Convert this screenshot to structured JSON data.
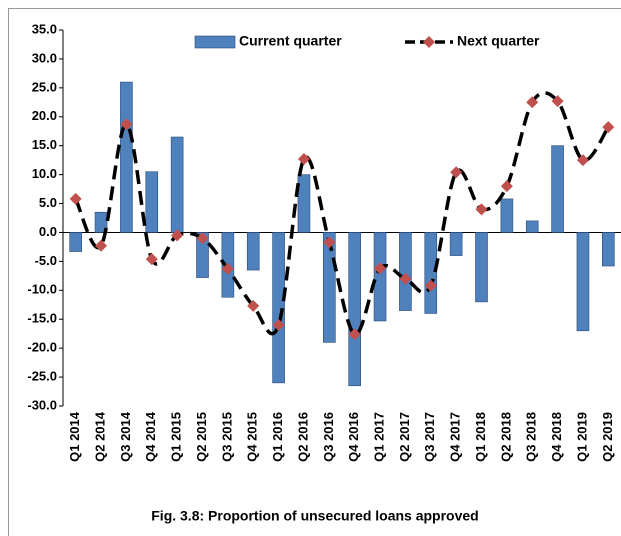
{
  "chart_data": {
    "type": "bar-line",
    "caption": "Fig. 3.8: Proportion of unsecured loans approved",
    "categories": [
      "Q1 2014",
      "Q2 2014",
      "Q3 2014",
      "Q4 2014",
      "Q1 2015",
      "Q2 2015",
      "Q3 2015",
      "Q4 2015",
      "Q1 2016",
      "Q2 2016",
      "Q3 2016",
      "Q4 2016",
      "Q1 2017",
      "Q2 2017",
      "Q3 2017",
      "Q4 2017",
      "Q1 2018",
      "Q2 2018",
      "Q3 2018",
      "Q4 2018",
      "Q1 2019",
      "Q2 2019"
    ],
    "series": [
      {
        "name": "Current quarter",
        "type": "bar",
        "color": "#4f81bd",
        "values": [
          -3.3,
          3.5,
          26.0,
          10.5,
          16.5,
          -7.8,
          -11.2,
          -6.5,
          -26.0,
          10.0,
          -19.0,
          -26.5,
          -15.3,
          -13.5,
          -14.0,
          -4.0,
          -12.0,
          5.8,
          2.0,
          15.0,
          -17.0,
          -5.8
        ]
      },
      {
        "name": "Next quarter",
        "type": "line",
        "color": "#000000",
        "marker_color": "#c0504d",
        "values": [
          5.8,
          -2.3,
          18.7,
          -4.6,
          -0.5,
          -1.0,
          -6.3,
          -12.7,
          -16.0,
          12.7,
          -1.7,
          -17.6,
          -6.2,
          -8.0,
          -9.2,
          10.4,
          4.0,
          8.0,
          22.5,
          22.7,
          12.5,
          18.2
        ]
      }
    ],
    "ylim": [
      -30,
      35
    ],
    "yticks": [
      {
        "value": 35,
        "label": "35.0"
      },
      {
        "value": 30,
        "label": "30.0"
      },
      {
        "value": 25,
        "label": "25.0"
      },
      {
        "value": 20,
        "label": "20.0"
      },
      {
        "value": 15,
        "label": "15.0"
      },
      {
        "value": 10,
        "label": "10.0"
      },
      {
        "value": 5,
        "label": "5.0"
      },
      {
        "value": 0,
        "label": "0.0"
      },
      {
        "value": -5,
        "label": "-5.0"
      },
      {
        "value": -10,
        "label": "-10.0"
      },
      {
        "value": -15,
        "label": "-15.0"
      },
      {
        "value": -20,
        "label": "-20.0"
      },
      {
        "value": -25,
        "label": "-25.0"
      },
      {
        "value": -30,
        "label": "-30.0"
      }
    ],
    "grid": false
  }
}
